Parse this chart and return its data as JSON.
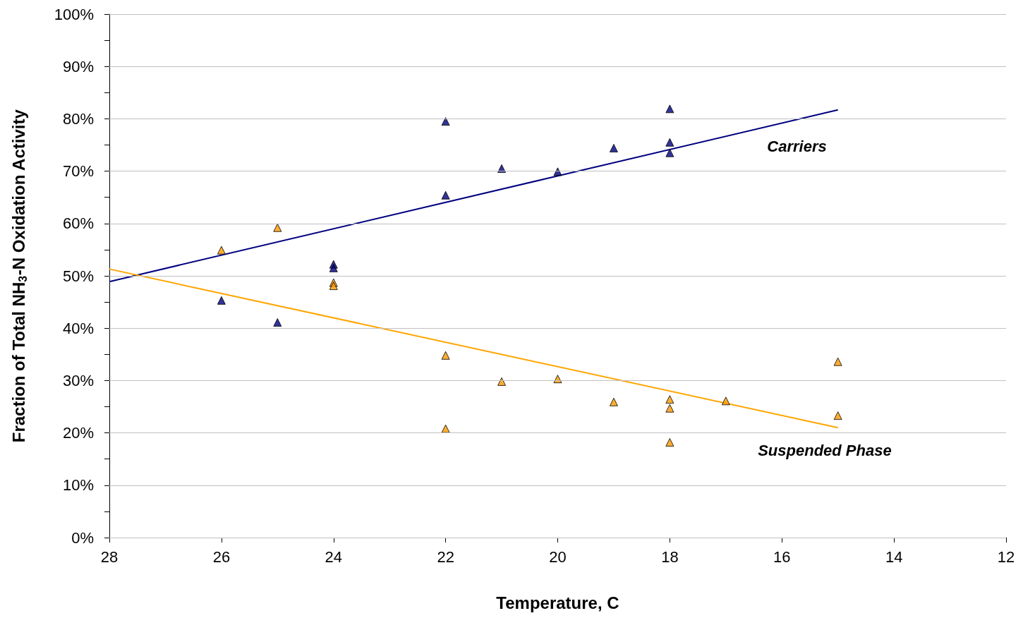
{
  "chart_data": {
    "type": "scatter",
    "xlabel": "Temperature, C",
    "ylabel": "Fraction of Total NH$_{3}$-N Oxidation Activity",
    "xlim": [
      28,
      12
    ],
    "xticks": [
      28,
      26,
      24,
      22,
      20,
      18,
      16,
      14,
      12
    ],
    "ylim": [
      0,
      100
    ],
    "yticks": [
      {
        "value": 0,
        "label": "0%"
      },
      {
        "value": 5,
        "label": null
      },
      {
        "value": 10,
        "label": "10%"
      },
      {
        "value": 15,
        "label": null
      },
      {
        "value": 20,
        "label": "20%"
      },
      {
        "value": 25,
        "label": null
      },
      {
        "value": 30,
        "label": "30%"
      },
      {
        "value": 35,
        "label": null
      },
      {
        "value": 40,
        "label": "40%"
      },
      {
        "value": 45,
        "label": null
      },
      {
        "value": 50,
        "label": "50%"
      },
      {
        "value": 55,
        "label": null
      },
      {
        "value": 60,
        "label": "60%"
      },
      {
        "value": 65,
        "label": null
      },
      {
        "value": 70,
        "label": "70%"
      },
      {
        "value": 75,
        "label": null
      },
      {
        "value": 80,
        "label": "80%"
      },
      {
        "value": 85,
        "label": null
      },
      {
        "value": 90,
        "label": "90%"
      },
      {
        "value": 95,
        "label": null
      },
      {
        "value": 100,
        "label": "100%"
      }
    ],
    "grid": "y",
    "marker": "triangle",
    "legend": false,
    "series": [
      {
        "color": "#000080",
        "x": [
          26,
          25,
          24,
          24,
          22,
          22,
          21,
          20,
          19,
          18,
          18,
          18
        ],
        "values": [
          45.3,
          41.1,
          52.2,
          51.5,
          79.5,
          65.4,
          70.5,
          69.9,
          74.4,
          81.9,
          75.5,
          73.5
        ]
      },
      {
        "color": "#ff9900",
        "x": [
          26,
          25,
          24,
          24,
          22,
          22,
          21,
          20,
          19,
          18,
          18,
          18,
          17,
          15,
          15
        ],
        "values": [
          54.9,
          59.2,
          48.7,
          48.1,
          34.8,
          20.8,
          29.8,
          30.3,
          25.9,
          26.4,
          24.7,
          18.2,
          26.1,
          33.6,
          23.3
        ]
      },
      {
        "type": "line",
        "name": "Carriers",
        "marker": "none",
        "color": "#000080",
        "x": [
          28,
          15
        ],
        "values": [
          48.9,
          81.7
        ]
      },
      {
        "type": "line",
        "name": "Suspended Phase",
        "marker": "none",
        "color": "#ffa500",
        "x": [
          28,
          15
        ],
        "values": [
          51.3,
          21.0
        ]
      }
    ]
  }
}
